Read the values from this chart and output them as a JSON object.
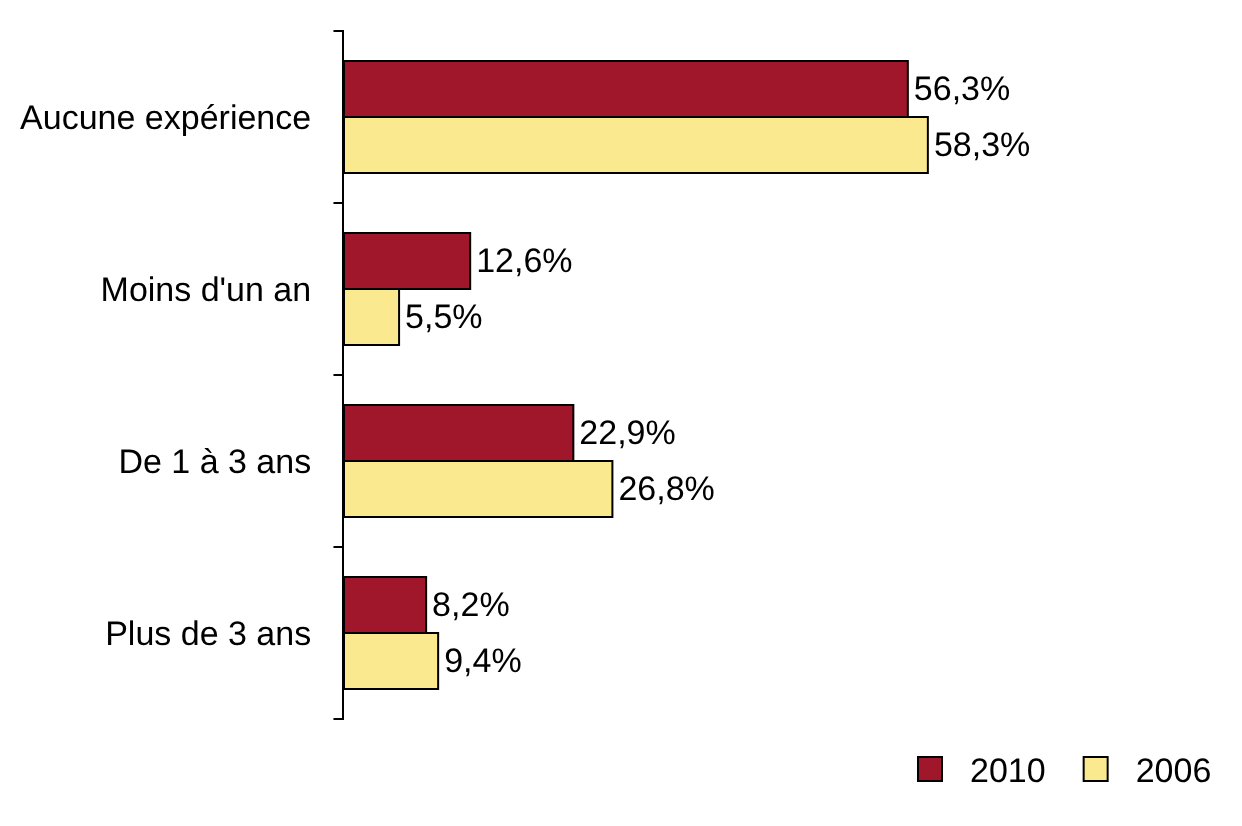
{
  "chart_data": {
    "type": "bar",
    "orientation": "horizontal",
    "categories": [
      "Aucune expérience",
      "Moins d'un an",
      "De 1 à 3 ans",
      "Plus de 3 ans"
    ],
    "series": [
      {
        "name": "2010",
        "color": "#a0162a",
        "values": [
          56.3,
          12.6,
          22.9,
          8.2
        ],
        "value_labels": [
          "56,3%",
          "12,6%",
          "22,9%",
          "8,2%"
        ]
      },
      {
        "name": "2006",
        "color": "#fbe98f",
        "values": [
          58.3,
          5.5,
          26.8,
          9.4
        ],
        "value_labels": [
          "58,3%",
          "5,5%",
          "26,8%",
          "9,4%"
        ]
      }
    ],
    "grid": false,
    "legend": "bottom right"
  }
}
